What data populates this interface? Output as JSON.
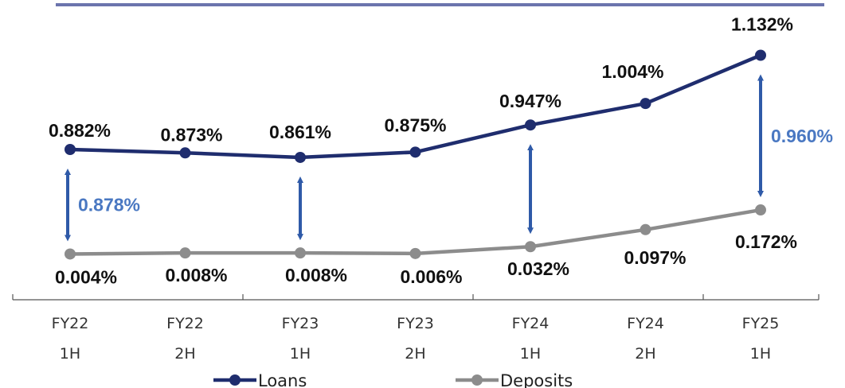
{
  "chart_data": {
    "type": "line",
    "categories": [
      [
        "FY22",
        "1H"
      ],
      [
        "FY22",
        "2H"
      ],
      [
        "FY23",
        "1H"
      ],
      [
        "FY23",
        "2H"
      ],
      [
        "FY24",
        "1H"
      ],
      [
        "FY24",
        "2H"
      ],
      [
        "FY25",
        "1H"
      ]
    ],
    "series": [
      {
        "name": "Loans",
        "color": "#1f2d6e",
        "values": [
          0.882,
          0.873,
          0.861,
          0.875,
          0.947,
          1.004,
          1.132
        ],
        "labels": [
          "0.882%",
          "0.873%",
          "0.861%",
          "0.875%",
          "0.947%",
          "1.004%",
          "1.132%"
        ]
      },
      {
        "name": "Deposits",
        "color": "#8c8c8c",
        "values": [
          0.004,
          0.008,
          0.008,
          0.006,
          0.032,
          0.097,
          0.172
        ],
        "labels": [
          "0.004%",
          "0.008%",
          "0.008%",
          "0.006%",
          "0.032%",
          "0.097%",
          "0.172%"
        ]
      }
    ],
    "spreads": [
      {
        "category_index": 0,
        "label": "0.878%"
      },
      {
        "category_index": 2,
        "label": ""
      },
      {
        "category_index": 4,
        "label": ""
      },
      {
        "category_index": 6,
        "label": "0.960%"
      }
    ],
    "title": "",
    "xlabel": "",
    "ylabel": "",
    "legend_position": "bottom",
    "grid": false,
    "colors": {
      "top_rule": "#6b74ad",
      "spread_arrow": "#2f5aa8",
      "spread_text": "#4a78c2"
    }
  }
}
